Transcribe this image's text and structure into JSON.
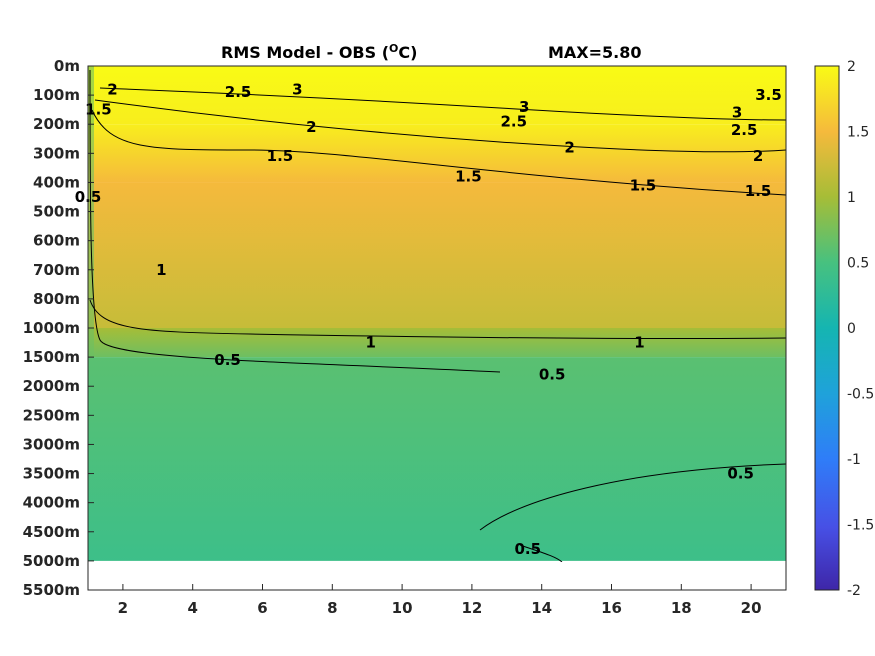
{
  "chart_data": {
    "type": "heatmap",
    "title": "RMS Model - OBS (",
    "title_unit_sup": "O",
    "title_unit_tail": "C)",
    "max_label": "MAX=5.80",
    "x_ticks": [
      2,
      4,
      6,
      8,
      10,
      12,
      14,
      16,
      18,
      20
    ],
    "x_range": [
      1,
      21
    ],
    "y_tick_labels": [
      "0m",
      "100m",
      "200m",
      "300m",
      "400m",
      "500m",
      "600m",
      "700m",
      "800m",
      "1000m",
      "1500m",
      "2000m",
      "2500m",
      "3000m",
      "3500m",
      "4000m",
      "4500m",
      "5000m",
      "5500m"
    ],
    "data_bottom_label": "5000m",
    "colorbar": {
      "range": [
        -2,
        2
      ],
      "ticks": [
        "2",
        "1.5",
        "1",
        "0.5",
        "0",
        "-0.5",
        "-1",
        "-1.5",
        "-2"
      ],
      "colormap": "parula"
    },
    "bands": [
      {
        "from_level": 0,
        "to_level": 2,
        "value_range": [
          1.9,
          2.3
        ]
      },
      {
        "from_level": 2,
        "to_level": 4,
        "value_range": [
          1.5,
          1.9
        ]
      },
      {
        "from_level": 4,
        "to_level": 9,
        "value_range": [
          1.2,
          1.5
        ]
      },
      {
        "from_level": 9,
        "to_level": 10,
        "value_range": [
          0.7,
          1.0
        ]
      },
      {
        "from_level": 10,
        "to_level": 17,
        "value_range": [
          0.4,
          0.6
        ]
      }
    ],
    "contour_labels": [
      {
        "text": "2.5",
        "x": 5.3,
        "level": 0.9
      },
      {
        "text": "3",
        "x": 7.0,
        "level": 0.8
      },
      {
        "text": "3",
        "x": 13.5,
        "level": 1.4
      },
      {
        "text": "2.5",
        "x": 13.2,
        "level": 1.9
      },
      {
        "text": "3",
        "x": 19.6,
        "level": 1.6
      },
      {
        "text": "3.5",
        "x": 20.5,
        "level": 1.0
      },
      {
        "text": "2.5",
        "x": 19.8,
        "level": 2.2
      },
      {
        "text": "2",
        "x": 7.4,
        "level": 2.1
      },
      {
        "text": "2",
        "x": 14.8,
        "level": 2.8
      },
      {
        "text": "2",
        "x": 20.2,
        "level": 3.1
      },
      {
        "text": "1.5",
        "x": 6.5,
        "level": 3.1
      },
      {
        "text": "1.5",
        "x": 11.9,
        "level": 3.8
      },
      {
        "text": "1.5",
        "x": 16.9,
        "level": 4.1
      },
      {
        "text": "1.5",
        "x": 20.2,
        "level": 4.3
      },
      {
        "text": "1",
        "x": 9.1,
        "level": 9.5
      },
      {
        "text": "1",
        "x": 16.8,
        "level": 9.5
      },
      {
        "text": "0.5",
        "x": 5.0,
        "level": 10.1
      },
      {
        "text": "0.5",
        "x": 14.3,
        "level": 10.6
      },
      {
        "text": "0.5",
        "x": 19.7,
        "level": 14.0
      },
      {
        "text": "0.5",
        "x": 13.6,
        "level": 16.6
      },
      {
        "text": "1",
        "x": 3.1,
        "level": 7.0
      },
      {
        "text": "1.5",
        "x": 1.3,
        "level": 1.5
      },
      {
        "text": "0.5",
        "x": 1.0,
        "level": 4.5
      },
      {
        "text": "2",
        "x": 1.7,
        "level": 0.8
      }
    ]
  },
  "icons": {}
}
